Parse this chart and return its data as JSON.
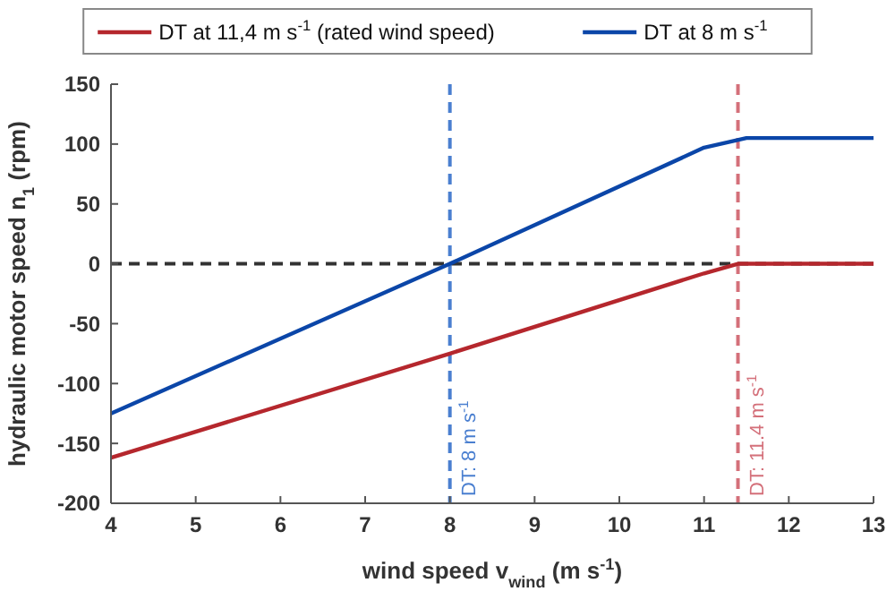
{
  "chart_data": {
    "type": "line",
    "xlabel": "wind speed v$_{wind}$ (m s$^{-1}$)",
    "ylabel": "hydraulic motor speed n$_{1}$ (rpm)",
    "xlim": [
      4,
      13
    ],
    "xticks": [
      4,
      5,
      6,
      7,
      8,
      9,
      10,
      11,
      12,
      13
    ],
    "ylim": [
      -200,
      150
    ],
    "yticks": [
      -200,
      -150,
      -100,
      -50,
      0,
      50,
      100,
      150
    ],
    "series": [
      {
        "name": "DT at 11,4 m s$^{-1}$ (rated wind speed)",
        "color": "#b5272d",
        "x": [
          4,
          8,
          11,
          11.4,
          13
        ],
        "values": [
          -162,
          -75,
          -8,
          0,
          0
        ]
      },
      {
        "name": "DT at 8 m s$^{-1}$",
        "color": "#0b46a8",
        "x": [
          4,
          8,
          11,
          11.5,
          13
        ],
        "values": [
          -125,
          0,
          97,
          105,
          105
        ]
      }
    ],
    "ref_lines": [
      {
        "axis": "y",
        "value": 0,
        "color": "#333333",
        "line_style": "dashed"
      },
      {
        "axis": "x",
        "value": 8,
        "label": "DT: 8 m s$^{-1}$",
        "color": "#4a7fd0",
        "line_style": "dashed"
      },
      {
        "axis": "x",
        "value": 11.4,
        "label": "DT: 11.4 m s$^{-1}$",
        "color": "#d4707a",
        "line_style": "dashed"
      }
    ],
    "grid": false,
    "legend": "top",
    "marker": "none",
    "line_style": "solid"
  }
}
